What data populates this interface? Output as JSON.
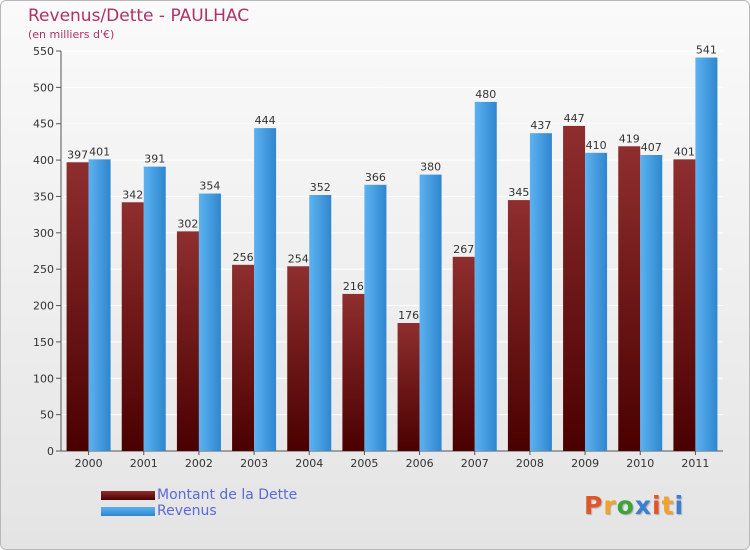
{
  "title": "Revenus/Dette - PAULHAC",
  "subtitle": "(en milliers d'€)",
  "colors": {
    "debt": "#7a1c1c",
    "revenue": "#4a9ee2",
    "title": "#b0306a",
    "legend_text": "#5a6ad8"
  },
  "legend": {
    "debt_label": "Montant de la Dette",
    "revenue_label": "Revenus"
  },
  "logo": {
    "text": "Proxiti",
    "letter_colors": [
      "#e0562b",
      "#f2a22a",
      "#3ca33c",
      "#3a7fd0",
      "#e0562b",
      "#f2a22a",
      "#3a7fd0"
    ]
  },
  "chart_data": {
    "type": "bar",
    "title": "Revenus/Dette - PAULHAC",
    "subtitle": "(en milliers d'€)",
    "categories": [
      "2000",
      "2001",
      "2002",
      "2003",
      "2004",
      "2005",
      "2006",
      "2007",
      "2008",
      "2009",
      "2010",
      "2011"
    ],
    "series": [
      {
        "name": "Montant de la Dette",
        "values": [
          397,
          342,
          302,
          256,
          254,
          216,
          176,
          267,
          345,
          447,
          419,
          401
        ]
      },
      {
        "name": "Revenus",
        "values": [
          401,
          391,
          354,
          444,
          352,
          366,
          380,
          480,
          437,
          410,
          407,
          541
        ]
      }
    ],
    "ylim": [
      0,
      550
    ],
    "yticks": [
      0,
      50,
      100,
      150,
      200,
      250,
      300,
      350,
      400,
      450,
      500,
      550
    ],
    "grid": true,
    "legend_position": "bottom-left"
  }
}
